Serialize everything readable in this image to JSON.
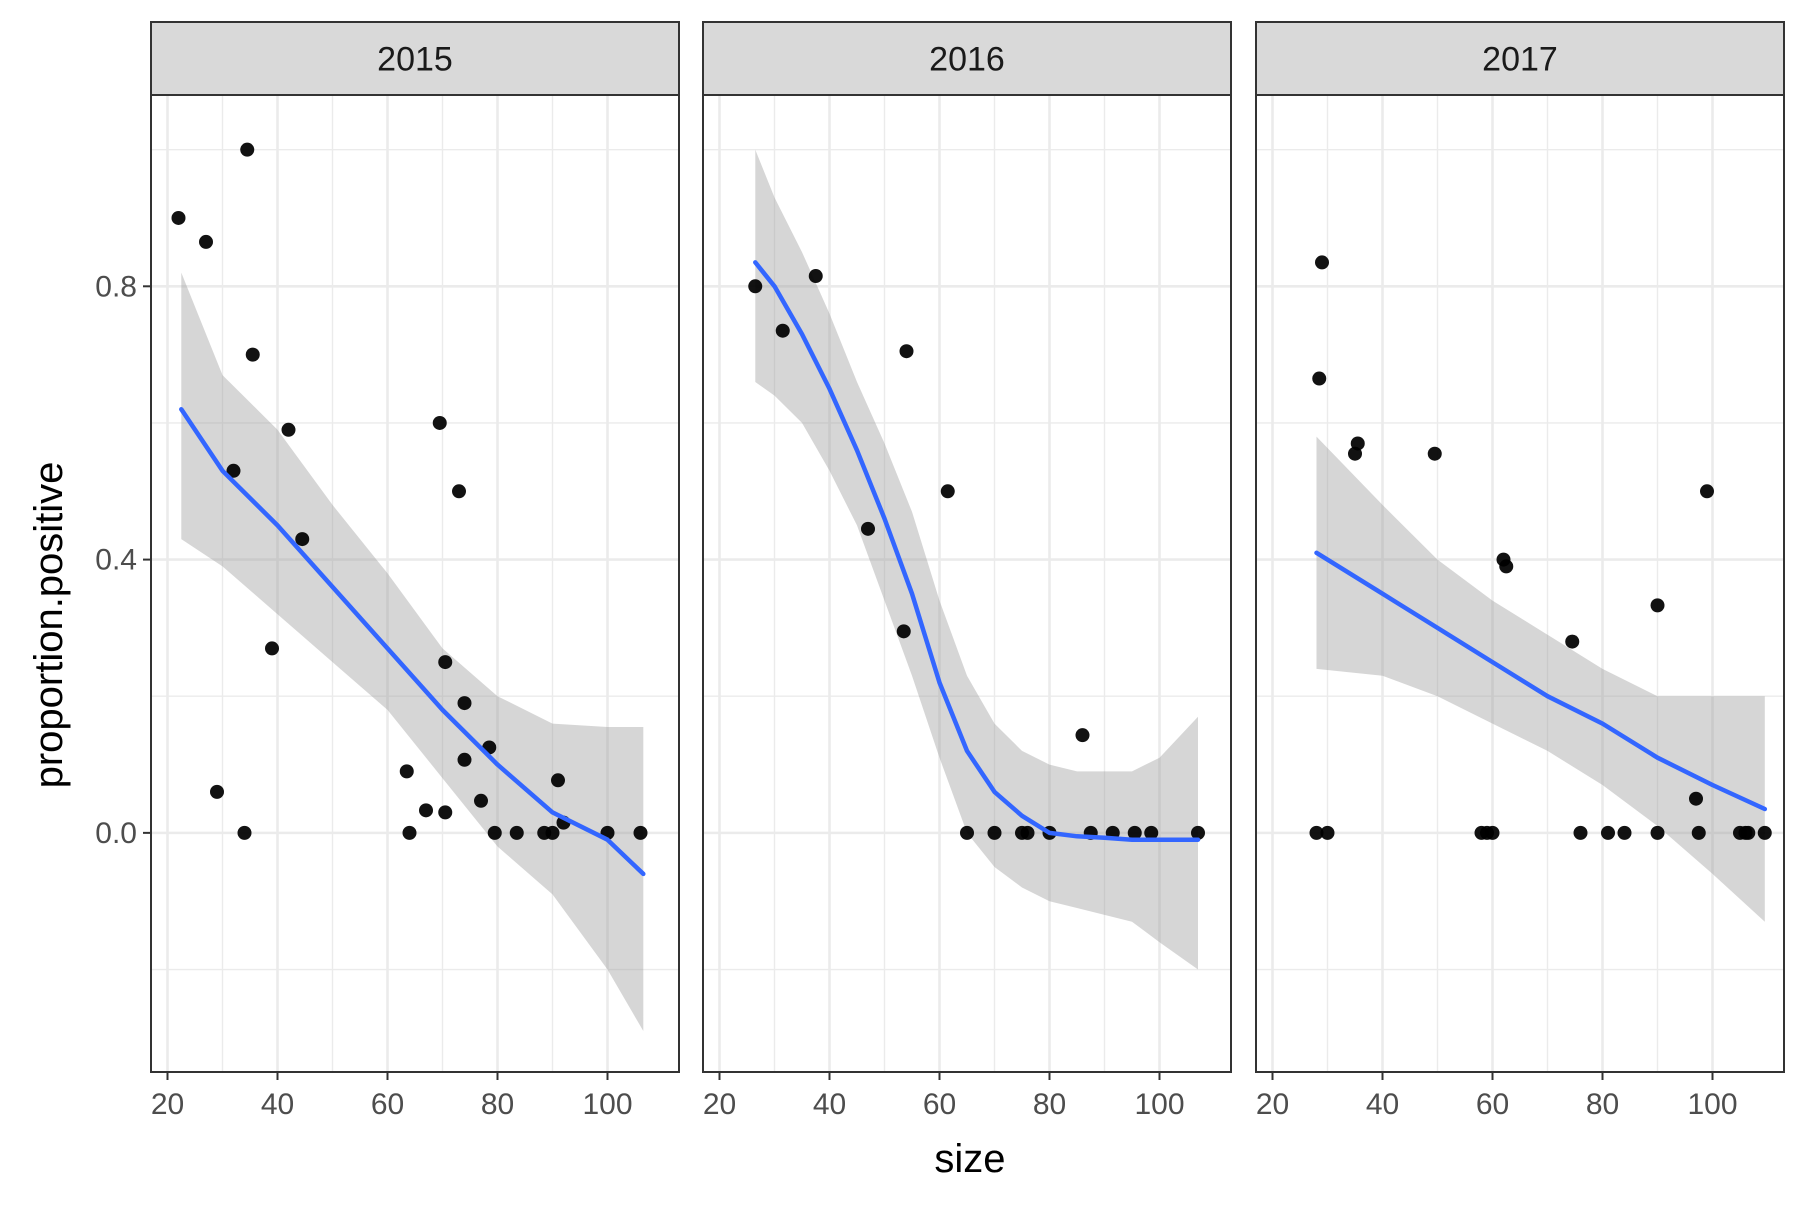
{
  "chart_data": {
    "type": "scatter",
    "xlabel": "size",
    "ylabel": "proportion.positive",
    "xlim": [
      17,
      113
    ],
    "ylim": [
      -0.35,
      1.08
    ],
    "x_ticks": [
      20,
      40,
      60,
      80,
      100
    ],
    "y_ticks": [
      0.0,
      0.4,
      0.8
    ],
    "y_tick_labels": [
      "0.0",
      "0.4",
      "0.8"
    ],
    "grid": true,
    "colors": {
      "points": "#000000",
      "smooth_line": "#3366FF",
      "ribbon": "#999999",
      "strip_fill": "#D9D9D9",
      "grid": "#EBEBEB",
      "panel_border": "#333333"
    },
    "facets": [
      {
        "label": "2015",
        "points": [
          {
            "x": 22,
            "y": 0.9
          },
          {
            "x": 27,
            "y": 0.865
          },
          {
            "x": 29,
            "y": 0.06
          },
          {
            "x": 32,
            "y": 0.53
          },
          {
            "x": 34,
            "y": 0.0
          },
          {
            "x": 34.5,
            "y": 1.0
          },
          {
            "x": 35.5,
            "y": 0.7
          },
          {
            "x": 39,
            "y": 0.27
          },
          {
            "x": 42,
            "y": 0.59
          },
          {
            "x": 44.5,
            "y": 0.43
          },
          {
            "x": 63.5,
            "y": 0.09
          },
          {
            "x": 64,
            "y": 0.0
          },
          {
            "x": 67,
            "y": 0.033
          },
          {
            "x": 69.5,
            "y": 0.6
          },
          {
            "x": 70.5,
            "y": 0.25
          },
          {
            "x": 70.5,
            "y": 0.03
          },
          {
            "x": 73,
            "y": 0.5
          },
          {
            "x": 74,
            "y": 0.19
          },
          {
            "x": 74,
            "y": 0.107
          },
          {
            "x": 77,
            "y": 0.047
          },
          {
            "x": 78.5,
            "y": 0.125
          },
          {
            "x": 79.5,
            "y": 0.0
          },
          {
            "x": 83.5,
            "y": 0.0
          },
          {
            "x": 88.5,
            "y": 0.0
          },
          {
            "x": 90,
            "y": 0.0
          },
          {
            "x": 91,
            "y": 0.077
          },
          {
            "x": 92,
            "y": 0.015
          },
          {
            "x": 100,
            "y": 0.0
          },
          {
            "x": 106,
            "y": 0.0
          }
        ],
        "smooth": {
          "x": [
            22.5,
            30,
            40,
            50,
            60,
            70,
            80,
            90,
            100,
            106.5
          ],
          "y": [
            0.62,
            0.53,
            0.45,
            0.36,
            0.27,
            0.18,
            0.1,
            0.03,
            -0.01,
            -0.06
          ],
          "lower": [
            0.43,
            0.39,
            0.32,
            0.25,
            0.18,
            0.08,
            -0.02,
            -0.09,
            -0.2,
            -0.29
          ],
          "upper": [
            0.82,
            0.67,
            0.59,
            0.48,
            0.38,
            0.27,
            0.2,
            0.16,
            0.155,
            0.155
          ]
        }
      },
      {
        "label": "2016",
        "points": [
          {
            "x": 26.5,
            "y": 0.8
          },
          {
            "x": 31.5,
            "y": 0.735
          },
          {
            "x": 37.5,
            "y": 0.815
          },
          {
            "x": 47,
            "y": 0.445
          },
          {
            "x": 53.5,
            "y": 0.295
          },
          {
            "x": 54,
            "y": 0.705
          },
          {
            "x": 61.5,
            "y": 0.5
          },
          {
            "x": 65,
            "y": 0.0
          },
          {
            "x": 70,
            "y": 0.0
          },
          {
            "x": 75,
            "y": 0.0
          },
          {
            "x": 76,
            "y": 0.0
          },
          {
            "x": 80,
            "y": 0.0
          },
          {
            "x": 86,
            "y": 0.143
          },
          {
            "x": 87.5,
            "y": 0.0
          },
          {
            "x": 91.5,
            "y": 0.0
          },
          {
            "x": 95.5,
            "y": 0.0
          },
          {
            "x": 98.5,
            "y": 0.0
          },
          {
            "x": 107,
            "y": 0.0
          }
        ],
        "smooth": {
          "x": [
            26.5,
            30,
            35,
            40,
            45,
            50,
            55,
            60,
            65,
            70,
            75,
            80,
            85,
            90,
            95,
            100,
            107
          ],
          "y": [
            0.835,
            0.8,
            0.73,
            0.65,
            0.56,
            0.46,
            0.35,
            0.22,
            0.12,
            0.06,
            0.025,
            0.0,
            -0.005,
            -0.007,
            -0.01,
            -0.01,
            -0.01
          ],
          "lower": [
            0.66,
            0.64,
            0.6,
            0.53,
            0.45,
            0.34,
            0.23,
            0.11,
            0.0,
            -0.05,
            -0.08,
            -0.1,
            -0.11,
            -0.12,
            -0.13,
            -0.16,
            -0.2
          ],
          "upper": [
            1.0,
            0.93,
            0.85,
            0.76,
            0.66,
            0.57,
            0.47,
            0.34,
            0.23,
            0.16,
            0.12,
            0.1,
            0.09,
            0.09,
            0.09,
            0.11,
            0.17
          ]
        }
      },
      {
        "label": "2017",
        "points": [
          {
            "x": 28,
            "y": 0.0
          },
          {
            "x": 28.5,
            "y": 0.665
          },
          {
            "x": 29,
            "y": 0.835
          },
          {
            "x": 30,
            "y": 0.0
          },
          {
            "x": 35,
            "y": 0.555
          },
          {
            "x": 35.5,
            "y": 0.57
          },
          {
            "x": 49.5,
            "y": 0.555
          },
          {
            "x": 58,
            "y": 0.0
          },
          {
            "x": 59,
            "y": 0.0
          },
          {
            "x": 60,
            "y": 0.0
          },
          {
            "x": 62,
            "y": 0.4
          },
          {
            "x": 62.5,
            "y": 0.39
          },
          {
            "x": 74.5,
            "y": 0.28
          },
          {
            "x": 76,
            "y": 0.0
          },
          {
            "x": 81,
            "y": 0.0
          },
          {
            "x": 84,
            "y": 0.0
          },
          {
            "x": 90,
            "y": 0.333
          },
          {
            "x": 90,
            "y": 0.0
          },
          {
            "x": 97,
            "y": 0.05
          },
          {
            "x": 97.5,
            "y": 0.0
          },
          {
            "x": 99,
            "y": 0.5
          },
          {
            "x": 105,
            "y": 0.0
          },
          {
            "x": 106,
            "y": 0.0
          },
          {
            "x": 106.5,
            "y": 0.0
          },
          {
            "x": 109.5,
            "y": 0.0
          }
        ],
        "smooth": {
          "x": [
            28,
            40,
            50,
            60,
            70,
            80,
            90,
            100,
            109.5
          ],
          "y": [
            0.41,
            0.35,
            0.3,
            0.25,
            0.2,
            0.16,
            0.11,
            0.07,
            0.035
          ],
          "lower": [
            0.24,
            0.23,
            0.2,
            0.16,
            0.12,
            0.07,
            0.01,
            -0.06,
            -0.13
          ],
          "upper": [
            0.58,
            0.48,
            0.4,
            0.34,
            0.29,
            0.24,
            0.2,
            0.2,
            0.2
          ]
        }
      }
    ]
  }
}
